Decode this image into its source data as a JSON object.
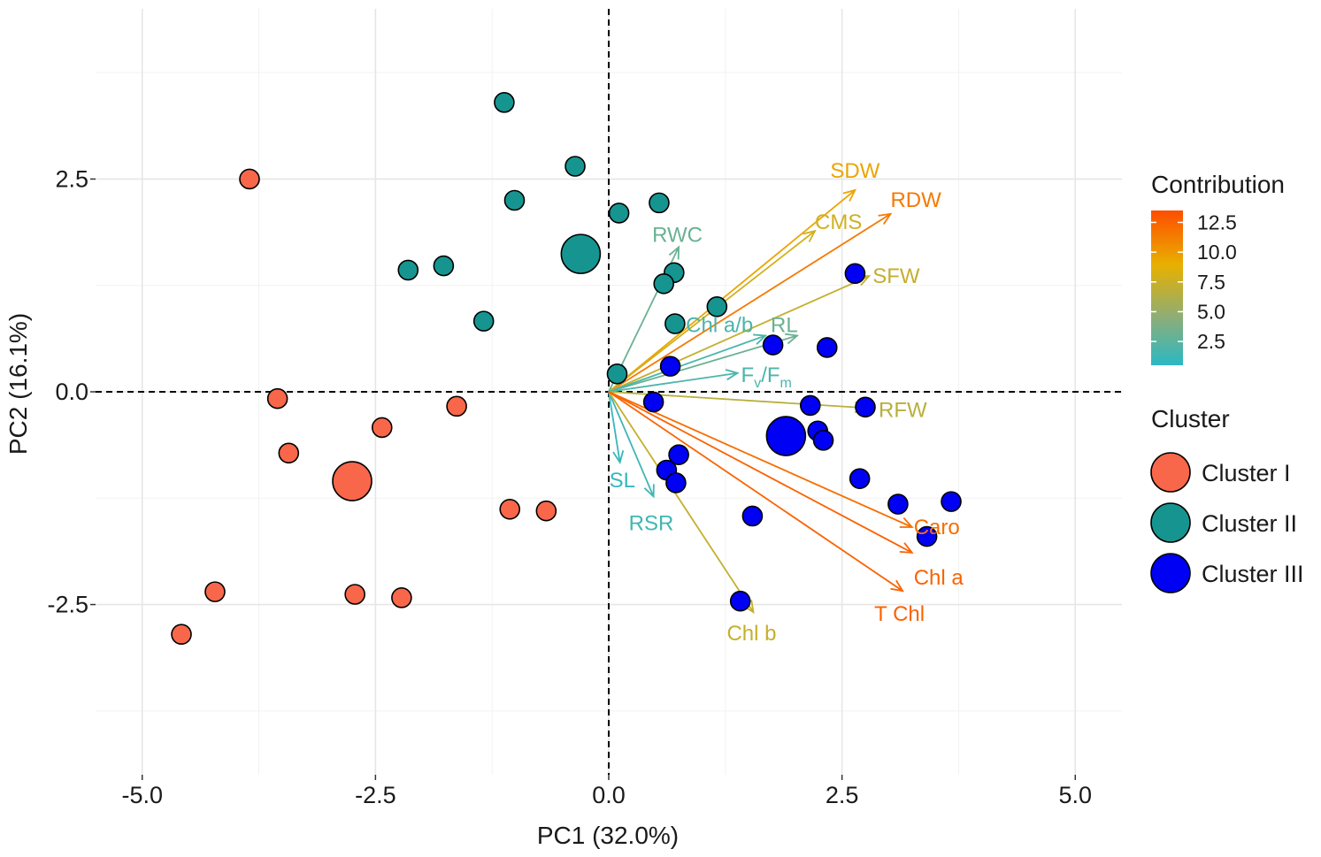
{
  "chart_data": {
    "type": "scatter",
    "xlabel": "PC1 (32.0%)",
    "ylabel": "PC2 (16.1%)",
    "xlim": [
      -5.5,
      5.5
    ],
    "ylim": [
      -4.5,
      4.5
    ],
    "x_ticks": [
      -5.0,
      -2.5,
      0.0,
      2.5,
      5.0
    ],
    "x_tick_labels": [
      "-5.0",
      "-2.5",
      "0.0",
      "2.5",
      "5.0"
    ],
    "y_ticks": [
      -2.5,
      0.0,
      2.5
    ],
    "y_tick_labels": [
      "-2.5",
      "0.0",
      "2.5"
    ],
    "grid": true,
    "reference_lines": {
      "x": 0,
      "y": 0,
      "style": "dashed"
    },
    "series": [
      {
        "name": "Cluster I",
        "color": "#F8674A",
        "points": [
          {
            "x": -3.85,
            "y": 2.5,
            "size": 1
          },
          {
            "x": -3.55,
            "y": -0.08,
            "size": 1
          },
          {
            "x": -3.43,
            "y": -0.72,
            "size": 1
          },
          {
            "x": -2.75,
            "y": -1.05,
            "size": 2.2
          },
          {
            "x": -2.43,
            "y": -0.42,
            "size": 1
          },
          {
            "x": -1.63,
            "y": -0.17,
            "size": 1
          },
          {
            "x": -1.06,
            "y": -1.38,
            "size": 1
          },
          {
            "x": -0.67,
            "y": -1.4,
            "size": 1
          },
          {
            "x": -4.22,
            "y": -2.35,
            "size": 1
          },
          {
            "x": -2.72,
            "y": -2.38,
            "size": 1
          },
          {
            "x": -2.22,
            "y": -2.42,
            "size": 1
          },
          {
            "x": -4.58,
            "y": -2.85,
            "size": 1
          }
        ]
      },
      {
        "name": "Cluster II",
        "color": "#169590",
        "points": [
          {
            "x": -1.12,
            "y": 3.4,
            "size": 1
          },
          {
            "x": -0.36,
            "y": 2.65,
            "size": 1
          },
          {
            "x": -1.01,
            "y": 2.25,
            "size": 1
          },
          {
            "x": 0.11,
            "y": 2.1,
            "size": 1
          },
          {
            "x": 0.54,
            "y": 2.22,
            "size": 1
          },
          {
            "x": -0.3,
            "y": 1.62,
            "size": 2.3
          },
          {
            "x": -2.15,
            "y": 1.43,
            "size": 1
          },
          {
            "x": -1.77,
            "y": 1.48,
            "size": 1
          },
          {
            "x": 0.7,
            "y": 1.4,
            "size": 1
          },
          {
            "x": 0.59,
            "y": 1.27,
            "size": 1
          },
          {
            "x": 1.16,
            "y": 1.0,
            "size": 1
          },
          {
            "x": 0.71,
            "y": 0.8,
            "size": 1
          },
          {
            "x": -1.34,
            "y": 0.83,
            "size": 1
          },
          {
            "x": 0.09,
            "y": 0.21,
            "size": 1
          }
        ]
      },
      {
        "name": "Cluster III",
        "color": "#0000F5",
        "points": [
          {
            "x": 2.64,
            "y": 1.39,
            "size": 1
          },
          {
            "x": 1.76,
            "y": 0.55,
            "size": 1
          },
          {
            "x": 2.34,
            "y": 0.52,
            "size": 1
          },
          {
            "x": 0.66,
            "y": 0.3,
            "size": 1
          },
          {
            "x": 0.48,
            "y": -0.12,
            "size": 1
          },
          {
            "x": 2.16,
            "y": -0.16,
            "size": 1
          },
          {
            "x": 2.75,
            "y": -0.18,
            "size": 1
          },
          {
            "x": 1.9,
            "y": -0.52,
            "size": 2.2
          },
          {
            "x": 2.24,
            "y": -0.46,
            "size": 1
          },
          {
            "x": 2.3,
            "y": -0.57,
            "size": 1
          },
          {
            "x": 0.75,
            "y": -0.74,
            "size": 1
          },
          {
            "x": 0.62,
            "y": -0.92,
            "size": 1
          },
          {
            "x": 0.72,
            "y": -1.07,
            "size": 1
          },
          {
            "x": 2.69,
            "y": -1.02,
            "size": 1
          },
          {
            "x": 3.1,
            "y": -1.32,
            "size": 1
          },
          {
            "x": 3.67,
            "y": -1.29,
            "size": 1
          },
          {
            "x": 1.54,
            "y": -1.46,
            "size": 1
          },
          {
            "x": 3.41,
            "y": -1.7,
            "size": 1
          },
          {
            "x": 1.41,
            "y": -2.46,
            "size": 1
          }
        ]
      }
    ],
    "loadings": [
      {
        "name": "SDW",
        "x": 2.64,
        "y": 2.37,
        "contribution": 9.5
      },
      {
        "name": "RDW",
        "x": 3.02,
        "y": 2.09,
        "contribution": 11.5
      },
      {
        "name": "CMS",
        "x": 2.21,
        "y": 1.89,
        "contribution": 8.0
      },
      {
        "name": "SFW",
        "x": 2.79,
        "y": 1.36,
        "contribution": 7.5
      },
      {
        "name": "RWC",
        "x": 0.75,
        "y": 1.7,
        "contribution": 3.5
      },
      {
        "name": "RL",
        "x": 2.02,
        "y": 0.66,
        "contribution": 3.5
      },
      {
        "name": "Chl a/b",
        "x": 1.68,
        "y": 0.66,
        "contribution": 2.0
      },
      {
        "name": "Fv/Fm",
        "x": 1.38,
        "y": 0.22,
        "contribution": 2.0
      },
      {
        "name": "RFW",
        "x": 2.76,
        "y": -0.19,
        "contribution": 7.0
      },
      {
        "name": "SL",
        "x": 0.12,
        "y": -0.83,
        "contribution": 1.0
      },
      {
        "name": "RSR",
        "x": 0.48,
        "y": -1.23,
        "contribution": 1.5
      },
      {
        "name": "Chl b",
        "x": 1.55,
        "y": -2.59,
        "contribution": 7.5
      },
      {
        "name": "Caro",
        "x": 3.25,
        "y": -1.59,
        "contribution": 12.0
      },
      {
        "name": "Chl a",
        "x": 3.25,
        "y": -1.89,
        "contribution": 12.5
      },
      {
        "name": "T Chl",
        "x": 3.15,
        "y": -2.34,
        "contribution": 12.5
      }
    ],
    "legend": {
      "contribution": {
        "title": "Contribution",
        "range": [
          0.5,
          13.5
        ],
        "ticks": [
          12.5,
          10.0,
          7.5,
          5.0,
          2.5
        ],
        "tick_labels": [
          "12.5",
          "10.0",
          "7.5",
          "5.0",
          "2.5"
        ],
        "gradient_colors": [
          "#FF4D00",
          "#E8B000",
          "#8AAE7A",
          "#2BB8C4"
        ]
      },
      "cluster": {
        "title": "Cluster",
        "entries": [
          "Cluster I",
          "Cluster II",
          "Cluster III"
        ]
      },
      "placement": "right"
    }
  }
}
